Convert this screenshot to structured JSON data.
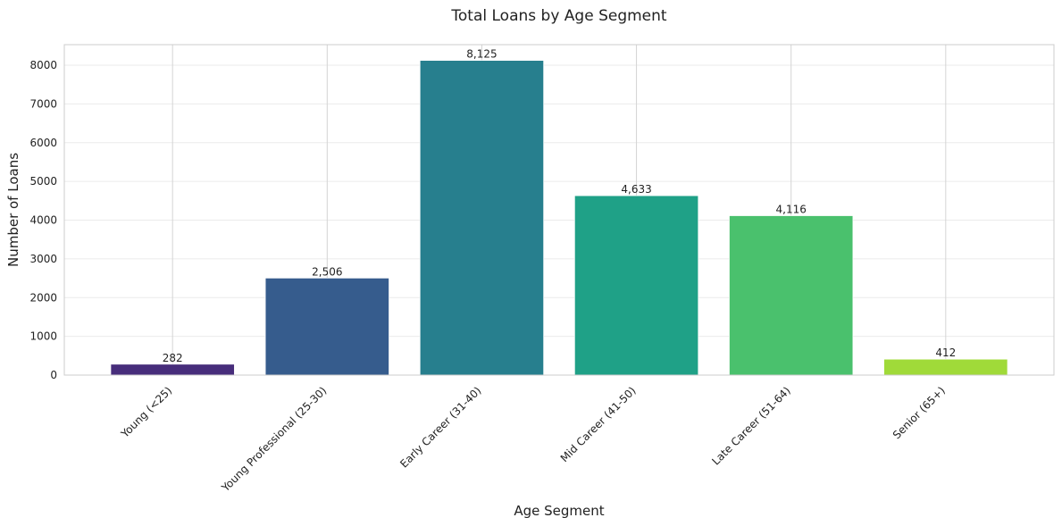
{
  "chart_data": {
    "type": "bar",
    "title": "Total Loans by Age Segment",
    "xlabel": "Age Segment",
    "ylabel": "Number of Loans",
    "categories": [
      "Young (<25)",
      "Young Professional (25-30)",
      "Early Career (31-40)",
      "Mid Career (41-50)",
      "Late Career (51-64)",
      "Senior (65+)"
    ],
    "values": [
      282,
      2506,
      8125,
      4633,
      4116,
      412
    ],
    "data_labels": [
      "282",
      "2,506",
      "8,125",
      "4,633",
      "4,116",
      "412"
    ],
    "colors": [
      "#472d7b",
      "#365c8d",
      "#277f8e",
      "#1fa187",
      "#4ac16d",
      "#a0da39"
    ],
    "yticks": [
      0,
      1000,
      2000,
      3000,
      4000,
      5000,
      6000,
      7000,
      8000
    ],
    "ylim": [
      0,
      8531
    ],
    "grid": true,
    "legend": "none"
  }
}
